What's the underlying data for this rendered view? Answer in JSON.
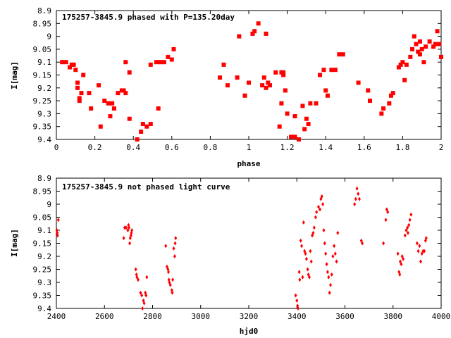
{
  "chart_data": [
    {
      "type": "scatter",
      "title": "175257-3845.9 phased with P=135.20day",
      "xlabel": "phase",
      "ylabel": "I[mag]",
      "xlim": [
        0,
        2
      ],
      "ylim": [
        9.4,
        8.9
      ],
      "y_inverted": true,
      "grid": false,
      "marker": "filled square",
      "marker_color": "#ff0000",
      "x_ticks": [
        "0",
        "0.2",
        "0.4",
        "0.6",
        "0.8",
        "1",
        "1.2",
        "1.4",
        "1.6",
        "1.8",
        "2"
      ],
      "y_ticks": [
        "8.9",
        "8.95",
        "9",
        "9.05",
        "9.1",
        "9.15",
        "9.2",
        "9.25",
        "9.3",
        "9.35",
        "9.4"
      ],
      "series": [
        {
          "points": [
            [
              0.03,
              9.1
            ],
            [
              0.05,
              9.1
            ],
            [
              0.07,
              9.12
            ],
            [
              0.08,
              9.11
            ],
            [
              0.09,
              9.11
            ],
            [
              0.1,
              9.13
            ],
            [
              0.11,
              9.18
            ],
            [
              0.11,
              9.2
            ],
            [
              0.12,
              9.24
            ],
            [
              0.12,
              9.25
            ],
            [
              0.14,
              9.15
            ],
            [
              0.13,
              9.22
            ],
            [
              0.17,
              9.22
            ],
            [
              0.18,
              9.28
            ],
            [
              0.22,
              9.19
            ],
            [
              0.23,
              9.35
            ],
            [
              0.25,
              9.25
            ],
            [
              0.27,
              9.26
            ],
            [
              0.28,
              9.31
            ],
            [
              0.29,
              9.26
            ],
            [
              0.3,
              9.28
            ],
            [
              0.32,
              9.22
            ],
            [
              0.34,
              9.21
            ],
            [
              0.35,
              9.21
            ],
            [
              0.36,
              9.22
            ],
            [
              0.36,
              9.1
            ],
            [
              0.38,
              9.14
            ],
            [
              0.38,
              9.32
            ],
            [
              0.42,
              9.4
            ],
            [
              0.44,
              9.37
            ],
            [
              0.45,
              9.34
            ],
            [
              0.47,
              9.35
            ],
            [
              0.49,
              9.34
            ],
            [
              0.49,
              9.11
            ],
            [
              0.52,
              9.1
            ],
            [
              0.53,
              9.28
            ],
            [
              0.54,
              9.1
            ],
            [
              0.56,
              9.1
            ],
            [
              0.58,
              9.08
            ],
            [
              0.6,
              9.09
            ],
            [
              0.61,
              9.05
            ],
            [
              0.85,
              9.16
            ],
            [
              0.87,
              9.11
            ],
            [
              0.89,
              9.19
            ],
            [
              0.94,
              9.16
            ],
            [
              0.95,
              9.0
            ],
            [
              0.98,
              9.23
            ],
            [
              1.0,
              9.18
            ],
            [
              1.02,
              8.99
            ],
            [
              1.03,
              8.98
            ],
            [
              1.05,
              8.95
            ],
            [
              1.07,
              9.19
            ],
            [
              1.08,
              9.16
            ],
            [
              1.09,
              9.2
            ],
            [
              1.09,
              8.99
            ],
            [
              1.1,
              9.18
            ],
            [
              1.11,
              9.19
            ],
            [
              1.14,
              9.14
            ],
            [
              1.16,
              9.35
            ],
            [
              1.17,
              9.14
            ],
            [
              1.18,
              9.14
            ],
            [
              1.17,
              9.26
            ],
            [
              1.18,
              9.15
            ],
            [
              1.19,
              9.21
            ],
            [
              1.2,
              9.3
            ],
            [
              1.22,
              9.39
            ],
            [
              1.24,
              9.31
            ],
            [
              1.24,
              9.39
            ],
            [
              1.26,
              9.4
            ],
            [
              1.28,
              9.27
            ],
            [
              1.29,
              9.36
            ],
            [
              1.3,
              9.32
            ],
            [
              1.31,
              9.34
            ],
            [
              1.32,
              9.26
            ],
            [
              1.35,
              9.26
            ],
            [
              1.37,
              9.15
            ],
            [
              1.39,
              9.13
            ],
            [
              1.4,
              9.21
            ],
            [
              1.41,
              9.23
            ],
            [
              1.43,
              9.13
            ],
            [
              1.45,
              9.13
            ],
            [
              1.47,
              9.07
            ],
            [
              1.49,
              9.07
            ],
            [
              1.57,
              9.18
            ],
            [
              1.62,
              9.21
            ],
            [
              1.63,
              9.25
            ],
            [
              1.69,
              9.3
            ],
            [
              1.7,
              9.28
            ],
            [
              1.73,
              9.26
            ],
            [
              1.74,
              9.23
            ],
            [
              1.75,
              9.22
            ],
            [
              1.78,
              9.12
            ],
            [
              1.79,
              9.11
            ],
            [
              1.8,
              9.1
            ],
            [
              1.81,
              9.17
            ],
            [
              1.82,
              9.11
            ],
            [
              1.84,
              9.08
            ],
            [
              1.85,
              9.05
            ],
            [
              1.86,
              9.0
            ],
            [
              1.87,
              9.03
            ],
            [
              1.88,
              9.06
            ],
            [
              1.89,
              9.02
            ],
            [
              1.89,
              9.07
            ],
            [
              1.9,
              9.05
            ],
            [
              1.91,
              9.1
            ],
            [
              1.92,
              9.04
            ],
            [
              1.94,
              9.02
            ],
            [
              1.96,
              9.04
            ],
            [
              1.97,
              9.03
            ],
            [
              1.98,
              8.98
            ],
            [
              1.99,
              9.03
            ],
            [
              2.0,
              9.08
            ]
          ]
        }
      ]
    },
    {
      "type": "scatter",
      "title": "175257-3845.9 not phased light curve",
      "xlabel": "hjd0",
      "ylabel": "I[mag]",
      "xlim": [
        2400,
        4000
      ],
      "ylim": [
        9.4,
        8.9
      ],
      "y_inverted": true,
      "grid": false,
      "marker": "small diamond",
      "marker_color": "#ff0000",
      "x_ticks": [
        "2400",
        "2600",
        "2800",
        "3000",
        "3200",
        "3400",
        "3600",
        "3800",
        "4000"
      ],
      "y_ticks": [
        "8.9",
        "8.95",
        "9",
        "9.05",
        "9.1",
        "9.15",
        "9.2",
        "9.25",
        "9.3",
        "9.35",
        "9.4"
      ],
      "series": [
        {
          "points": [
            [
              2402,
              9.1
            ],
            [
              2404,
              9.11
            ],
            [
              2405,
              9.12
            ],
            [
              2408,
              9.06
            ],
            [
              2680,
              9.13
            ],
            [
              2684,
              9.09
            ],
            [
              2690,
              9.09
            ],
            [
              2697,
              9.1
            ],
            [
              2700,
              9.08
            ],
            [
              2702,
              9.09
            ],
            [
              2705,
              9.15
            ],
            [
              2707,
              9.13
            ],
            [
              2710,
              9.12
            ],
            [
              2712,
              9.11
            ],
            [
              2714,
              9.1
            ],
            [
              2730,
              9.25
            ],
            [
              2733,
              9.27
            ],
            [
              2735,
              9.28
            ],
            [
              2740,
              9.29
            ],
            [
              2750,
              9.34
            ],
            [
              2755,
              9.35
            ],
            [
              2758,
              9.4
            ],
            [
              2762,
              9.37
            ],
            [
              2765,
              9.38
            ],
            [
              2770,
              9.34
            ],
            [
              2773,
              9.35
            ],
            [
              2776,
              9.28
            ],
            [
              2855,
              9.16
            ],
            [
              2860,
              9.24
            ],
            [
              2864,
              9.25
            ],
            [
              2866,
              9.26
            ],
            [
              2868,
              9.29
            ],
            [
              2870,
              9.3
            ],
            [
              2874,
              9.31
            ],
            [
              2880,
              9.33
            ],
            [
              2882,
              9.34
            ],
            [
              2884,
              9.29
            ],
            [
              2888,
              9.17
            ],
            [
              2892,
              9.2
            ],
            [
              2894,
              9.15
            ],
            [
              2896,
              9.13
            ],
            [
              3395,
              9.35
            ],
            [
              3400,
              9.37
            ],
            [
              3403,
              9.39
            ],
            [
              3405,
              9.4
            ],
            [
              3410,
              9.26
            ],
            [
              3412,
              9.29
            ],
            [
              3416,
              9.14
            ],
            [
              3420,
              9.16
            ],
            [
              3424,
              9.28
            ],
            [
              3428,
              9.07
            ],
            [
              3432,
              9.18
            ],
            [
              3436,
              9.19
            ],
            [
              3440,
              9.21
            ],
            [
              3445,
              9.25
            ],
            [
              3448,
              9.27
            ],
            [
              3452,
              9.28
            ],
            [
              3456,
              9.18
            ],
            [
              3460,
              9.22
            ],
            [
              3464,
              9.12
            ],
            [
              3468,
              9.11
            ],
            [
              3472,
              9.09
            ],
            [
              3478,
              9.05
            ],
            [
              3482,
              9.03
            ],
            [
              3490,
              9.01
            ],
            [
              3496,
              9.02
            ],
            [
              3500,
              8.98
            ],
            [
              3504,
              8.97
            ],
            [
              3508,
              9.0
            ],
            [
              3512,
              9.1
            ],
            [
              3516,
              9.15
            ],
            [
              3520,
              9.19
            ],
            [
              3524,
              9.23
            ],
            [
              3528,
              9.26
            ],
            [
              3532,
              9.28
            ],
            [
              3536,
              9.34
            ],
            [
              3540,
              9.31
            ],
            [
              3545,
              9.27
            ],
            [
              3550,
              9.2
            ],
            [
              3555,
              9.16
            ],
            [
              3560,
              9.19
            ],
            [
              3565,
              9.22
            ],
            [
              3570,
              9.11
            ],
            [
              3640,
              9.0
            ],
            [
              3645,
              8.98
            ],
            [
              3650,
              8.94
            ],
            [
              3655,
              8.96
            ],
            [
              3660,
              8.98
            ],
            [
              3668,
              9.14
            ],
            [
              3672,
              9.15
            ],
            [
              3760,
              9.15
            ],
            [
              3770,
              9.06
            ],
            [
              3774,
              9.02
            ],
            [
              3778,
              9.03
            ],
            [
              3820,
              9.19
            ],
            [
              3825,
              9.26
            ],
            [
              3828,
              9.27
            ],
            [
              3830,
              9.22
            ],
            [
              3834,
              9.23
            ],
            [
              3838,
              9.2
            ],
            [
              3842,
              9.21
            ],
            [
              3850,
              9.12
            ],
            [
              3855,
              9.1
            ],
            [
              3860,
              9.09
            ],
            [
              3862,
              9.11
            ],
            [
              3866,
              9.08
            ],
            [
              3870,
              9.06
            ],
            [
              3875,
              9.04
            ],
            [
              3900,
              9.15
            ],
            [
              3905,
              9.18
            ],
            [
              3910,
              9.16
            ],
            [
              3915,
              9.22
            ],
            [
              3920,
              9.19
            ],
            [
              3925,
              9.18
            ],
            [
              3930,
              9.18
            ],
            [
              3935,
              9.14
            ],
            [
              3938,
              9.13
            ]
          ]
        }
      ]
    }
  ]
}
